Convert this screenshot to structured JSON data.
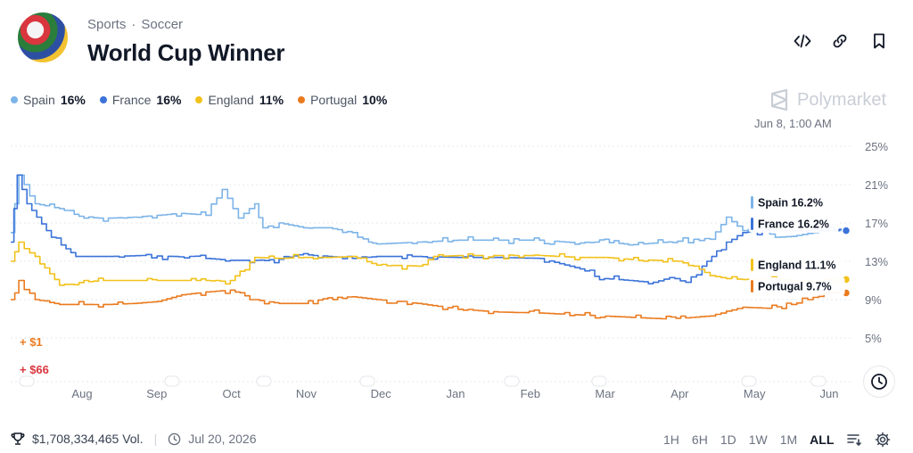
{
  "header": {
    "breadcrumb": [
      "Sports",
      "Soccer"
    ],
    "title": "World Cup Winner",
    "icons": [
      "code-icon",
      "link-icon",
      "bookmark-icon"
    ]
  },
  "brand": "Polymarket",
  "timestamp": "Jun 8, 1:00 AM",
  "legend": [
    {
      "name": "Spain",
      "value": "16%",
      "color": "#7cb4e8"
    },
    {
      "name": "France",
      "value": "16%",
      "color": "#3b73d9"
    },
    {
      "name": "England",
      "value": "11%",
      "color": "#f2c11b"
    },
    {
      "name": "Portugal",
      "value": "10%",
      "color": "#ea7a1e"
    }
  ],
  "trades": [
    {
      "label": "+ $1",
      "color": "#ea7a1e"
    },
    {
      "label": "+ $66",
      "color": "#d9363e"
    }
  ],
  "footer": {
    "volume": "$1,708,334,465 Vol.",
    "date": "Jul 20, 2026"
  },
  "ranges": [
    "1H",
    "6H",
    "1D",
    "1W",
    "1M",
    "ALL"
  ],
  "active_range": "ALL",
  "chart_data": {
    "type": "line",
    "x_ticks": [
      "Aug",
      "Sep",
      "Oct",
      "Nov",
      "Dec",
      "Jan",
      "Feb",
      "Mar",
      "Apr",
      "May",
      "Jun"
    ],
    "y_ticks": [
      "25%",
      "21%",
      "17%",
      "13%",
      "9%",
      "5%"
    ],
    "ylim": [
      1,
      25
    ],
    "grid": true,
    "series": [
      {
        "name": "Spain",
        "color": "#7cb4e8",
        "end_label": "Spain 16.2%",
        "x": [
          0,
          0.1,
          0.3,
          0.6,
          0.9,
          1.2,
          1.5,
          1.8,
          2.1,
          2.4,
          2.6,
          2.8,
          3.0,
          3.1,
          3.3,
          3.6,
          3.9,
          4.2,
          4.4,
          4.5,
          5.0,
          5.5,
          6.0,
          6.5,
          7.0,
          7.3,
          7.6,
          7.9,
          8.2,
          8.4,
          8.6,
          8.8,
          9.0,
          9.2,
          9.4,
          9.6,
          10.0,
          10.25
        ],
        "y": [
          16,
          22,
          19,
          18.5,
          17.5,
          17.5,
          17.6,
          17.8,
          18,
          17.8,
          20.5,
          17.5,
          19,
          16.5,
          17,
          16.5,
          16.5,
          16,
          15,
          14.8,
          15,
          15.2,
          15.2,
          15.2,
          14.9,
          15.3,
          14.7,
          14.9,
          15.1,
          15.3,
          15.3,
          17.6,
          16.2,
          16.5,
          15.5,
          15.6,
          16.2,
          16.2
        ]
      },
      {
        "name": "France",
        "color": "#3b73d9",
        "end_label": "France 16.2%",
        "x": [
          0,
          0.08,
          0.2,
          0.5,
          0.8,
          1.2,
          1.6,
          2.0,
          2.4,
          2.7,
          3.0,
          3.3,
          3.6,
          3.9,
          4.2,
          4.5,
          5.0,
          5.5,
          6.0,
          6.5,
          7.0,
          7.3,
          7.6,
          7.9,
          8.1,
          8.3,
          8.5,
          8.8,
          9.0,
          9.3,
          9.6,
          10.0,
          10.25
        ],
        "y": [
          15,
          22,
          19,
          15.5,
          13.5,
          13.5,
          13.6,
          13.5,
          13.3,
          13.1,
          13.1,
          13.2,
          13.8,
          13.5,
          13.3,
          13.5,
          13.5,
          13.4,
          13.4,
          13.3,
          12.2,
          11.2,
          11.0,
          10.8,
          11.3,
          10.8,
          12.5,
          15,
          16,
          16.2,
          16.2,
          16.2,
          16.2
        ]
      },
      {
        "name": "England",
        "color": "#f2c11b",
        "end_label": "England 11.1%",
        "x": [
          0,
          0.1,
          0.3,
          0.6,
          0.9,
          1.2,
          1.5,
          1.8,
          2.1,
          2.4,
          2.7,
          3.0,
          3.3,
          3.6,
          3.9,
          4.2,
          4.5,
          5.0,
          5.2,
          5.5,
          6.0,
          6.5,
          7.0,
          7.3,
          7.6,
          7.9,
          8.2,
          8.4,
          8.6,
          8.8,
          9.0,
          9.3,
          9.6,
          10.0,
          10.25
        ],
        "y": [
          13,
          15,
          13.5,
          10.5,
          11,
          11,
          11,
          11,
          11,
          11,
          11,
          13.4,
          13.3,
          13.4,
          13.4,
          13.5,
          12.6,
          12.5,
          13.5,
          13.6,
          13.6,
          13.6,
          13.4,
          13.4,
          13.2,
          13.1,
          13.0,
          12.5,
          11.5,
          11.2,
          11.1,
          11.2,
          11.0,
          11.1,
          11.1
        ]
      },
      {
        "name": "Portugal",
        "color": "#ea7a1e",
        "end_label": "Portugal 9.7%",
        "x": [
          0,
          0.1,
          0.3,
          0.6,
          0.9,
          1.2,
          1.5,
          1.8,
          2.1,
          2.4,
          2.7,
          3.0,
          3.3,
          3.6,
          3.9,
          4.2,
          4.5,
          5.0,
          5.5,
          6.0,
          6.5,
          7.0,
          7.5,
          8.0,
          8.3,
          8.6,
          8.8,
          9.0,
          9.3,
          9.6,
          9.8,
          10.0,
          10.25
        ],
        "y": [
          9,
          11,
          9,
          8.5,
          8.5,
          8.5,
          8.6,
          8.8,
          9.5,
          9.8,
          10,
          9,
          8.6,
          8.6,
          9.2,
          9.3,
          9.0,
          8.6,
          8.0,
          7.7,
          7.6,
          7.4,
          7.2,
          7.0,
          7.1,
          7.3,
          7.8,
          8.2,
          8.1,
          8.5,
          9.0,
          9.7,
          9.7
        ]
      }
    ]
  }
}
